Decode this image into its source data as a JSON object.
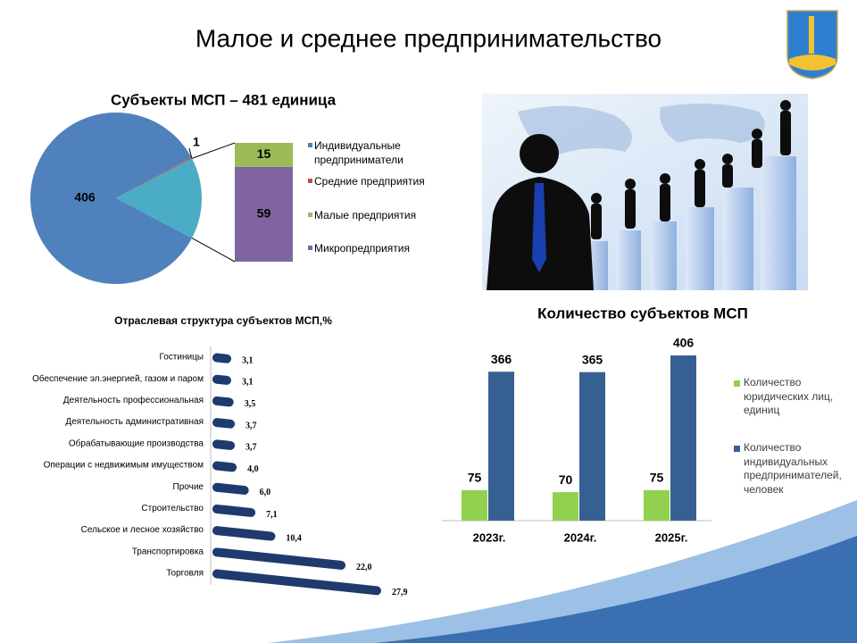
{
  "title": "Малое и среднее предпринимательство",
  "chart_data": [
    {
      "type": "pie",
      "title": "Субъекты МСП – 481 единица",
      "categories": [
        "Индивидуальные предприниматели",
        "Средние предприятия",
        "Малые предприятия",
        "Микропредприятия"
      ],
      "values": [
        406,
        1,
        15,
        59
      ],
      "colors": [
        "#4f81bd",
        "#c0504d",
        "#9bbb59",
        "#8064a2"
      ],
      "legend": "right"
    },
    {
      "type": "bar",
      "orientation": "horizontal",
      "title": "Отраслевая структура субъектов МСП,%",
      "categories": [
        "Гостиницы",
        "Обеспечение эл.энергией, газом и паром",
        "Деятельность профессиональная",
        "Деятельность административная",
        "Обрабатывающие производства",
        "Операции с недвижимым имуществом",
        "Прочие",
        "Строительство",
        "Сельское и лесное хозяйство",
        "Транспортировка",
        "Торговля"
      ],
      "values": [
        3.1,
        3.1,
        3.5,
        3.7,
        3.7,
        4.0,
        6.0,
        7.1,
        10.4,
        22.0,
        27.9
      ],
      "value_labels": [
        "3,1",
        "3,1",
        "3,5",
        "3,7",
        "3,7",
        "4,0",
        "6,0",
        "7,1",
        "10,4",
        "22,0",
        "27,9"
      ],
      "color": "#1f3b6e"
    },
    {
      "type": "bar",
      "title": "Количество субъектов МСП",
      "categories": [
        "2023г.",
        "2024г.",
        "2025г."
      ],
      "series": [
        {
          "name": "Количество юридических лиц, единиц",
          "color": "#92d050",
          "values": [
            75,
            70,
            75
          ]
        },
        {
          "name": "Количество индивидуальных предпринимателей, человек",
          "color": "#376092",
          "values": [
            366,
            365,
            406
          ]
        }
      ],
      "legend": "right"
    }
  ]
}
